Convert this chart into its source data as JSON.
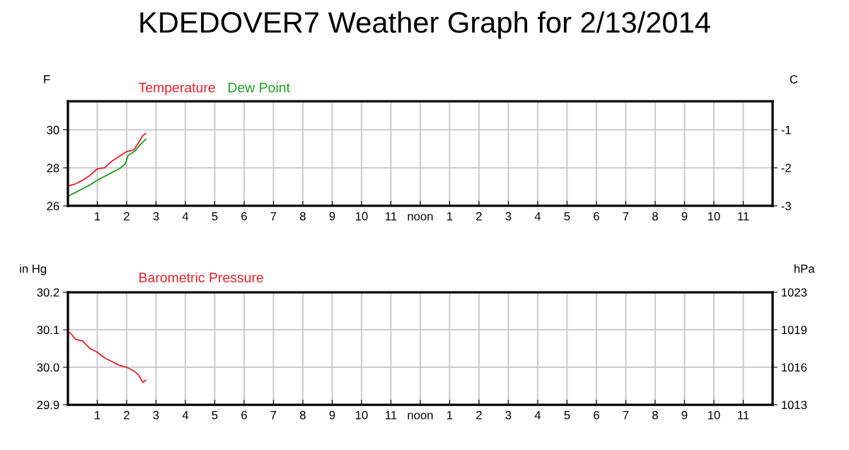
{
  "chart_data": [
    {
      "type": "line",
      "title": "KDEDOVER7 Weather Graph for 2/13/2014",
      "ylabel": "F",
      "y2label": "C",
      "xlim": [
        "2014-02-13T00:00",
        "2014-02-14T00:00"
      ],
      "xticks": [
        {
          "value": "2014-02-13T01:00",
          "label": "1"
        },
        {
          "value": "2014-02-13T02:00",
          "label": "2"
        },
        {
          "value": "2014-02-13T03:00",
          "label": "3"
        },
        {
          "value": "2014-02-13T04:00",
          "label": "4"
        },
        {
          "value": "2014-02-13T05:00",
          "label": "5"
        },
        {
          "value": "2014-02-13T06:00",
          "label": "6"
        },
        {
          "value": "2014-02-13T07:00",
          "label": "7"
        },
        {
          "value": "2014-02-13T08:00",
          "label": "8"
        },
        {
          "value": "2014-02-13T09:00",
          "label": "9"
        },
        {
          "value": "2014-02-13T10:00",
          "label": "10"
        },
        {
          "value": "2014-02-13T11:00",
          "label": "11"
        },
        {
          "value": "2014-02-13T12:00",
          "label": "noon"
        },
        {
          "value": "2014-02-13T13:00",
          "label": "1"
        },
        {
          "value": "2014-02-13T14:00",
          "label": "2"
        },
        {
          "value": "2014-02-13T15:00",
          "label": "3"
        },
        {
          "value": "2014-02-13T16:00",
          "label": "4"
        },
        {
          "value": "2014-02-13T17:00",
          "label": "5"
        },
        {
          "value": "2014-02-13T18:00",
          "label": "6"
        },
        {
          "value": "2014-02-13T19:00",
          "label": "7"
        },
        {
          "value": "2014-02-13T20:00",
          "label": "8"
        },
        {
          "value": "2014-02-13T21:00",
          "label": "9"
        },
        {
          "value": "2014-02-13T22:00",
          "label": "10"
        },
        {
          "value": "2014-02-13T23:00",
          "label": "11"
        }
      ],
      "ylim": [
        26,
        31.5
      ],
      "yticks": [
        26,
        28,
        30
      ],
      "y2lim": [
        -3.33,
        -0.28
      ],
      "y2ticks": [
        {
          "value": -3.33,
          "label": "-3"
        },
        {
          "value": -2.22,
          "label": "-2"
        },
        {
          "value": -1.11,
          "label": "-1"
        }
      ],
      "grid": true,
      "legend": "top left",
      "line_style": "solid",
      "marker": "none",
      "series": [
        {
          "name": "Temperature",
          "color": "#e8202a",
          "x": [
            "2014-02-13T00:00",
            "2014-02-13T00:15",
            "2014-02-13T00:30",
            "2014-02-13T00:45",
            "2014-02-13T01:00",
            "2014-02-13T01:15",
            "2014-02-13T01:30",
            "2014-02-13T01:45",
            "2014-02-13T02:00",
            "2014-02-13T02:15",
            "2014-02-13T02:24",
            "2014-02-13T02:33",
            "2014-02-13T02:39"
          ],
          "values": [
            27.05,
            27.15,
            27.35,
            27.6,
            27.95,
            28.0,
            28.35,
            28.6,
            28.85,
            28.95,
            29.3,
            29.7,
            29.8
          ]
        },
        {
          "name": "Dew Point",
          "color": "#1e9e1e",
          "x": [
            "2014-02-13T00:00",
            "2014-02-13T00:15",
            "2014-02-13T00:30",
            "2014-02-13T00:45",
            "2014-02-13T01:00",
            "2014-02-13T01:15",
            "2014-02-13T01:30",
            "2014-02-13T01:45",
            "2014-02-13T01:57",
            "2014-02-13T02:03",
            "2014-02-13T02:18",
            "2014-02-13T02:27",
            "2014-02-13T02:39"
          ],
          "values": [
            26.5,
            26.7,
            26.9,
            27.1,
            27.35,
            27.55,
            27.75,
            27.95,
            28.2,
            28.65,
            28.9,
            29.2,
            29.5
          ]
        }
      ]
    },
    {
      "type": "line",
      "ylabel": "in Hg",
      "y2label": "hPa",
      "xlim": [
        "2014-02-13T00:00",
        "2014-02-14T00:00"
      ],
      "xticks": [
        {
          "value": "2014-02-13T01:00",
          "label": "1"
        },
        {
          "value": "2014-02-13T02:00",
          "label": "2"
        },
        {
          "value": "2014-02-13T03:00",
          "label": "3"
        },
        {
          "value": "2014-02-13T04:00",
          "label": "4"
        },
        {
          "value": "2014-02-13T05:00",
          "label": "5"
        },
        {
          "value": "2014-02-13T06:00",
          "label": "6"
        },
        {
          "value": "2014-02-13T07:00",
          "label": "7"
        },
        {
          "value": "2014-02-13T08:00",
          "label": "8"
        },
        {
          "value": "2014-02-13T09:00",
          "label": "9"
        },
        {
          "value": "2014-02-13T10:00",
          "label": "10"
        },
        {
          "value": "2014-02-13T11:00",
          "label": "11"
        },
        {
          "value": "2014-02-13T12:00",
          "label": "noon"
        },
        {
          "value": "2014-02-13T13:00",
          "label": "1"
        },
        {
          "value": "2014-02-13T14:00",
          "label": "2"
        },
        {
          "value": "2014-02-13T15:00",
          "label": "3"
        },
        {
          "value": "2014-02-13T16:00",
          "label": "4"
        },
        {
          "value": "2014-02-13T17:00",
          "label": "5"
        },
        {
          "value": "2014-02-13T18:00",
          "label": "6"
        },
        {
          "value": "2014-02-13T19:00",
          "label": "7"
        },
        {
          "value": "2014-02-13T20:00",
          "label": "8"
        },
        {
          "value": "2014-02-13T21:00",
          "label": "9"
        },
        {
          "value": "2014-02-13T22:00",
          "label": "10"
        },
        {
          "value": "2014-02-13T23:00",
          "label": "11"
        }
      ],
      "ylim": [
        29.9,
        30.2
      ],
      "yticks": [
        {
          "value": 29.9,
          "label": "29.9"
        },
        {
          "value": 30.0,
          "label": "30.0"
        },
        {
          "value": 30.1,
          "label": "30.1"
        },
        {
          "value": 30.2,
          "label": "30.2"
        }
      ],
      "y2lim": [
        1012.5,
        1022.7
      ],
      "y2ticks": [
        {
          "value": 1012.5,
          "label": "1013"
        },
        {
          "value": 1015.9,
          "label": "1016"
        },
        {
          "value": 1019.3,
          "label": "1019"
        },
        {
          "value": 1022.7,
          "label": "1023"
        }
      ],
      "grid": true,
      "legend": "top left",
      "line_style": "solid",
      "marker": "none",
      "series": [
        {
          "name": "Barometric Pressure",
          "color": "#e8202a",
          "x": [
            "2014-02-13T00:00",
            "2014-02-13T00:06",
            "2014-02-13T00:15",
            "2014-02-13T00:30",
            "2014-02-13T00:45",
            "2014-02-13T01:00",
            "2014-02-13T01:15",
            "2014-02-13T01:30",
            "2014-02-13T01:45",
            "2014-02-13T02:00",
            "2014-02-13T02:15",
            "2014-02-13T02:24",
            "2014-02-13T02:33",
            "2014-02-13T02:39"
          ],
          "values": [
            30.095,
            30.09,
            30.075,
            30.07,
            30.05,
            30.04,
            30.025,
            30.015,
            30.005,
            30.0,
            29.99,
            29.98,
            29.96,
            29.965
          ]
        }
      ]
    }
  ]
}
